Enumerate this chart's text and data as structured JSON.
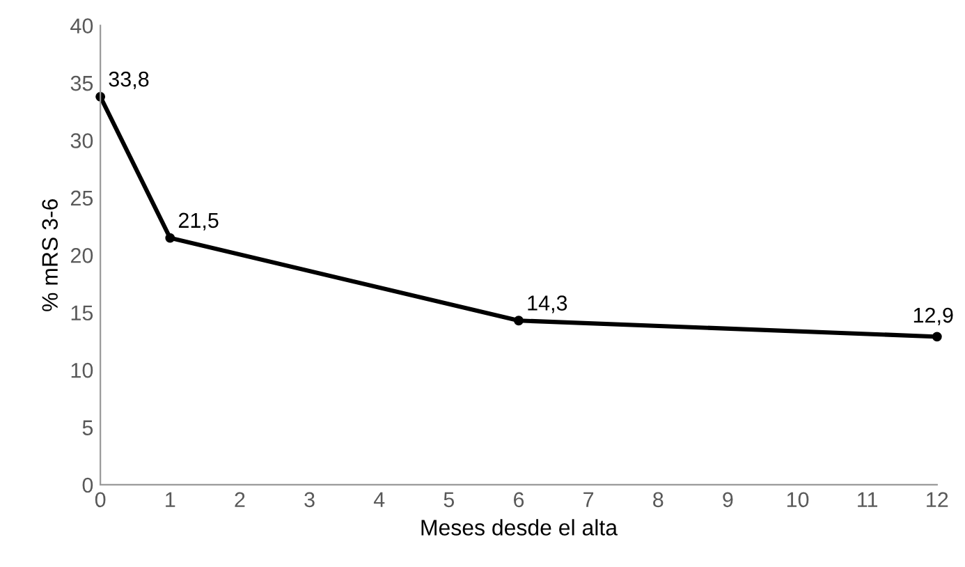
{
  "chart_data": {
    "type": "line",
    "xlabel": "Meses desde el alta",
    "ylabel": "% mRS 3-6",
    "x": [
      0,
      1,
      6,
      12
    ],
    "series": [
      {
        "color": "#000000",
        "values": [
          33.8,
          21.5,
          14.3,
          12.9
        ],
        "value_labels": [
          "33,8",
          "21,5",
          "14,3",
          "12,9"
        ]
      }
    ],
    "xlim": [
      0,
      12
    ],
    "xticks": [
      0,
      1,
      2,
      3,
      4,
      5,
      6,
      7,
      8,
      9,
      10,
      11,
      12
    ],
    "ylim": [
      0,
      40
    ],
    "yticks": [
      0,
      5,
      10,
      15,
      20,
      25,
      30,
      35,
      40
    ],
    "grid": false,
    "marker": "circle",
    "line_style": "solid"
  }
}
